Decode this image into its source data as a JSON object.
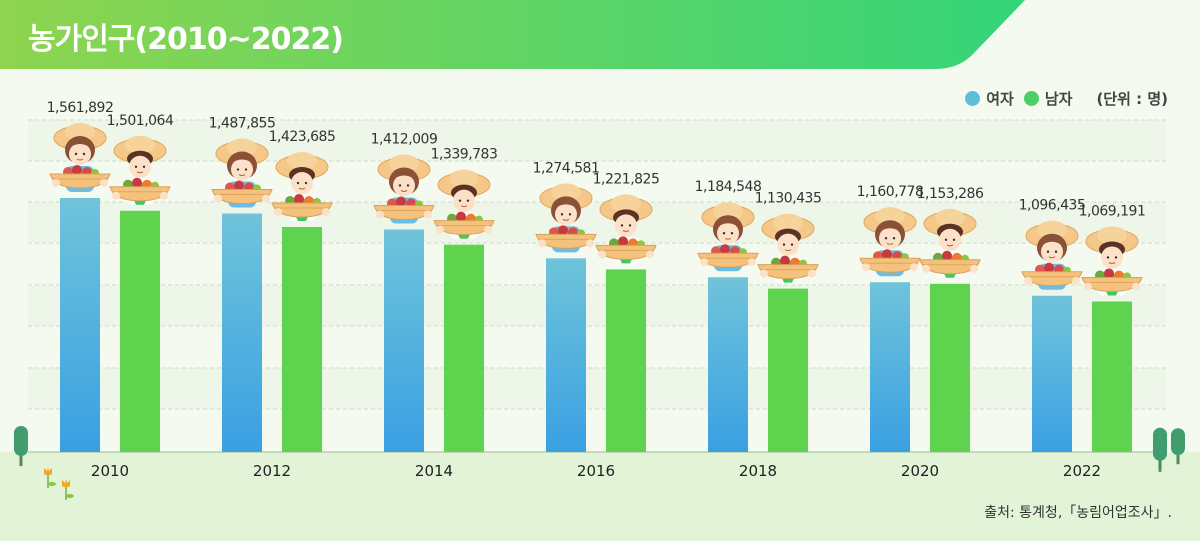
{
  "title": "농가인구(2010~2022)",
  "legend": {
    "items": [
      {
        "label": "여자",
        "color": "#5bbfd8"
      },
      {
        "label": "남자",
        "color": "#4cd066"
      }
    ],
    "unit": "(단위 : 명)"
  },
  "source": "출처: 통계청,「농림어업조사」.",
  "colors": {
    "header_start": "#8ed44f",
    "header_end": "#34d47a",
    "female_top": "#6fc4da",
    "female_bottom": "#3aa0e3",
    "male_top": "#5fd24e",
    "male_bottom": "#5fd24e",
    "grid": "#c9dfc4",
    "ground": "#e2f3d8"
  },
  "icons": [
    "farmer-woman-icon",
    "farmer-man-icon",
    "tree-icon",
    "tulip-icon"
  ],
  "chart_data": {
    "type": "bar",
    "categories": [
      "2010",
      "2012",
      "2014",
      "2016",
      "2018",
      "2020",
      "2022"
    ],
    "series": [
      {
        "name": "여자",
        "values": [
          1561892,
          1487855,
          1412009,
          1274581,
          1184548,
          1160778,
          1096435
        ],
        "labels": [
          "1,561,892",
          "1,487,855",
          "1,412,009",
          "1,274,581",
          "1,184,548",
          "1,160,778",
          "1,096,435"
        ]
      },
      {
        "name": "남자",
        "values": [
          1501064,
          1423685,
          1339783,
          1221825,
          1130435,
          1153286,
          1069191
        ],
        "labels": [
          "1,501,064",
          "1,423,685",
          "1,339,783",
          "1,221,825",
          "1,130,435",
          "1,153,286",
          "1,069,191"
        ]
      }
    ],
    "legend": "top-right",
    "grid": true
  }
}
